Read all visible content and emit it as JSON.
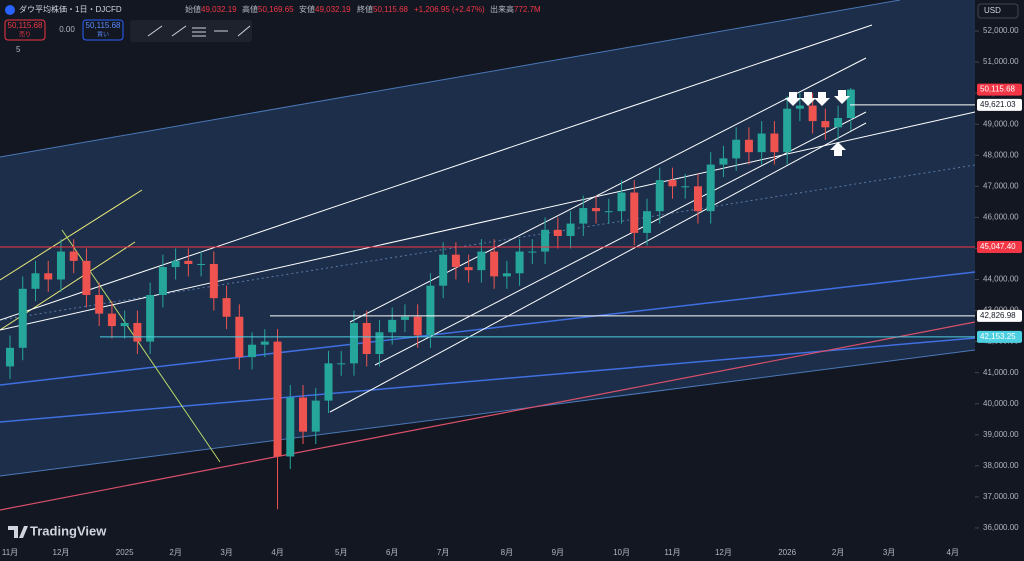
{
  "header": {
    "symbol": "ダウ平均株価・1日・DJCFD",
    "open_label": "始値",
    "open": "49,032.19",
    "high_label": "高値",
    "high": "50,169.65",
    "low_label": "安値",
    "low": "49,032.19",
    "close_label": "終値",
    "close": "50,115.68",
    "change": "+1,206.95 (+2.47%)",
    "volume_label": "出来高",
    "volume": "772.7M"
  },
  "toolbar": {
    "sell_price": "50,115.68",
    "sell": "売り",
    "spread": "0.00",
    "buy_price": "50,115.68",
    "buy": "買い",
    "count": "5",
    "currency": "USD",
    "brand": "TradingView"
  },
  "chart_data": {
    "type": "candlestick",
    "up_color": "#26a69a",
    "down_color": "#ef5350",
    "ylim": [
      35450,
      53000
    ],
    "yticks": [
      {
        "value": 36000,
        "label": "36,000.00"
      },
      {
        "value": 37000,
        "label": "37,000.00"
      },
      {
        "value": 38000,
        "label": "38,000.00"
      },
      {
        "value": 39000,
        "label": "39,000.00"
      },
      {
        "value": 40000,
        "label": "40,000.00"
      },
      {
        "value": 41000,
        "label": "41,000.00"
      },
      {
        "value": 42000,
        "label": "42,000.00"
      },
      {
        "value": 43000,
        "label": "43,000.00"
      },
      {
        "value": 44000,
        "label": "44,000.00"
      },
      {
        "value": 45000,
        "label": "45,000.00"
      },
      {
        "value": 46000,
        "label": "46,000.00"
      },
      {
        "value": 47000,
        "label": "47,000.00"
      },
      {
        "value": 48000,
        "label": "48,000.00"
      },
      {
        "value": 49000,
        "label": "49,000.00"
      },
      {
        "value": 50000,
        "label": "50,000.00"
      },
      {
        "value": 51000,
        "label": "51,000.00"
      },
      {
        "value": 52000,
        "label": "52,000.00"
      }
    ],
    "categories": [
      "11月",
      null,
      null,
      null,
      "12月",
      null,
      null,
      null,
      null,
      "2025",
      null,
      null,
      null,
      "2月",
      null,
      null,
      null,
      "3月",
      null,
      null,
      null,
      "4月",
      null,
      null,
      null,
      null,
      "5月",
      null,
      null,
      null,
      "6月",
      null,
      null,
      null,
      "7月",
      null,
      null,
      null,
      null,
      "8月",
      null,
      null,
      null,
      "9月",
      null,
      null,
      null,
      null,
      "10月",
      null,
      null,
      null,
      "11月",
      null,
      null,
      null,
      "12月",
      null,
      null,
      null,
      null,
      "2026",
      null,
      null,
      null,
      "2月",
      null,
      null,
      null,
      "3月",
      null,
      null,
      null,
      null,
      "4月"
    ],
    "candles": {
      "open": [
        41200,
        41800,
        43700,
        44200,
        44000,
        44900,
        44600,
        43500,
        42900,
        42500,
        42600,
        42000,
        43500,
        44400,
        44600,
        44500,
        44500,
        43400,
        42800,
        41500,
        41900,
        42000,
        38300,
        40200,
        39100,
        40100,
        41300,
        41300,
        42600,
        41600,
        42300,
        42700,
        42800,
        42200,
        43800,
        44800,
        44400,
        44300,
        44900,
        44100,
        44200,
        44900,
        44900,
        45600,
        45400,
        45800,
        46300,
        46200,
        46200,
        46800,
        45500,
        46200,
        47200,
        47000,
        47000,
        46200,
        47700,
        47900,
        48500,
        48100,
        48700,
        48100,
        49500,
        49600,
        49100,
        48900,
        49200,
        null,
        null,
        null,
        null,
        null,
        null,
        null,
        null
      ],
      "high": [
        42200,
        44100,
        44600,
        44600,
        45300,
        45300,
        45000,
        43900,
        43300,
        43000,
        43000,
        43900,
        44800,
        45000,
        45000,
        44900,
        44900,
        43800,
        43200,
        42300,
        42400,
        42400,
        40600,
        40600,
        40500,
        41700,
        41700,
        43000,
        43000,
        42700,
        43100,
        43200,
        43200,
        44200,
        45200,
        45200,
        44800,
        45300,
        45300,
        44600,
        45300,
        45300,
        46000,
        46000,
        46200,
        46700,
        46700,
        46600,
        47200,
        47200,
        46600,
        47600,
        47600,
        47400,
        47400,
        48100,
        48300,
        48900,
        48900,
        49100,
        49100,
        49900,
        50000,
        50000,
        49500,
        49600,
        50169.65,
        null,
        null,
        null,
        null,
        null,
        null,
        null,
        null
      ],
      "low": [
        40800,
        41400,
        43300,
        43600,
        43600,
        44200,
        43100,
        42500,
        42100,
        42100,
        41600,
        41600,
        43100,
        44000,
        44100,
        44100,
        43000,
        42400,
        41100,
        41100,
        41500,
        36600,
        37900,
        38700,
        38700,
        39700,
        40900,
        40900,
        41200,
        41200,
        41900,
        42300,
        41800,
        41800,
        43400,
        44000,
        43900,
        43900,
        43700,
        43700,
        43800,
        44500,
        44500,
        45000,
        45000,
        45400,
        45800,
        45800,
        45800,
        45100,
        45100,
        45800,
        46600,
        46600,
        45800,
        45800,
        47300,
        47500,
        47700,
        47700,
        47700,
        47700,
        49100,
        48700,
        48500,
        48500,
        48800,
        null,
        null,
        null,
        null,
        null,
        null,
        null,
        null
      ],
      "close": [
        41800,
        43700,
        44200,
        44000,
        44900,
        44600,
        43500,
        42900,
        42500,
        42600,
        42000,
        43500,
        44400,
        44600,
        44500,
        44500,
        43400,
        42800,
        41500,
        41900,
        42000,
        38300,
        40200,
        39100,
        40100,
        41300,
        41300,
        42600,
        41600,
        42300,
        42700,
        42800,
        42200,
        43800,
        44800,
        44400,
        44300,
        44900,
        44100,
        44200,
        44900,
        44900,
        45600,
        45400,
        45800,
        46300,
        46200,
        46200,
        46800,
        45500,
        46200,
        47200,
        47000,
        47000,
        46200,
        47700,
        47900,
        48500,
        48100,
        48700,
        48100,
        49500,
        49600,
        49100,
        48900,
        49200,
        50115.68,
        null,
        null,
        null,
        null,
        null,
        null,
        null,
        null
      ]
    },
    "price_lines": [
      {
        "value": 50115.68,
        "label": "50,115.68",
        "color": "#f23645"
      },
      {
        "value": 49621.03,
        "label": "49,621.03",
        "color": "#ffffff"
      },
      {
        "value": 45047.4,
        "label": "45,047.40",
        "color": "#f23645"
      },
      {
        "value": 42826.98,
        "label": "42,826.98",
        "color": "#ffffff"
      },
      {
        "value": 42153.25,
        "label": "42,153.25",
        "color": "#4dd0e1"
      }
    ]
  }
}
